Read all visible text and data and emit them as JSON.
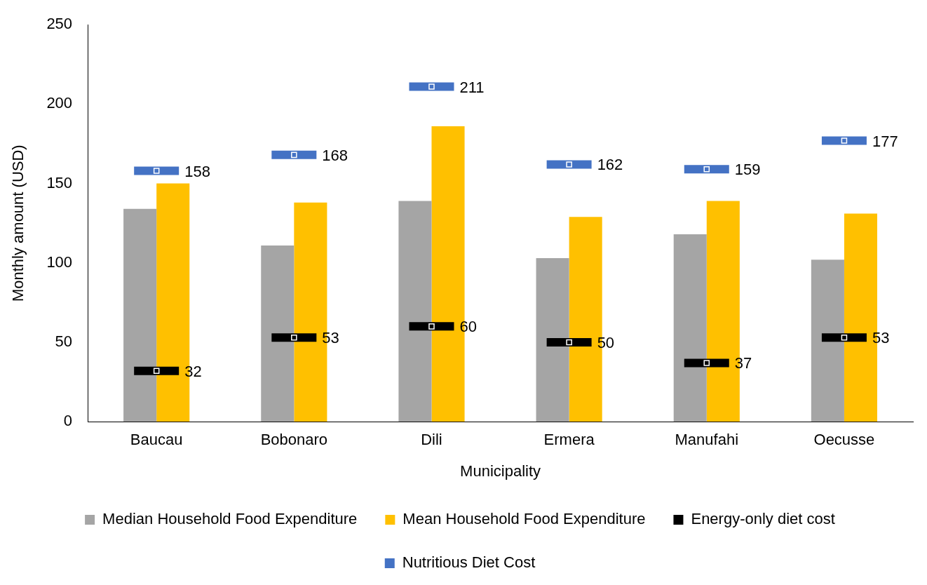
{
  "chart_data": {
    "type": "bar",
    "xlabel": "Municipality",
    "ylabel": "Monthly amount (USD)",
    "categories": [
      "Baucau",
      "Bobonaro",
      "Dili",
      "Ermera",
      "Manufahi",
      "Oecusse"
    ],
    "series": [
      {
        "name": "Median Household Food Expenditure",
        "color": "#a5a5a5",
        "values": [
          134,
          111,
          139,
          103,
          118,
          102
        ]
      },
      {
        "name": "Mean Household Food Expenditure",
        "color": "#ffc000",
        "values": [
          150,
          138,
          186,
          129,
          139,
          131
        ]
      },
      {
        "name": "Energy-only diet cost",
        "type": "scatter",
        "color": "#000000",
        "values": [
          32,
          53,
          60,
          50,
          37,
          53
        ],
        "value_labels": [
          "32",
          "53",
          "60",
          "50",
          "37",
          "53"
        ]
      },
      {
        "name": "Nutritious Diet Cost",
        "type": "scatter",
        "color": "#4472c4",
        "values": [
          158,
          168,
          211,
          162,
          159,
          177
        ],
        "value_labels": [
          "158",
          "168",
          "211",
          "162",
          "159",
          "177"
        ]
      }
    ],
    "ylim": [
      0,
      250
    ],
    "yticks": [
      0,
      50,
      100,
      150,
      200,
      250
    ],
    "grid": false,
    "legend": "bottom"
  }
}
